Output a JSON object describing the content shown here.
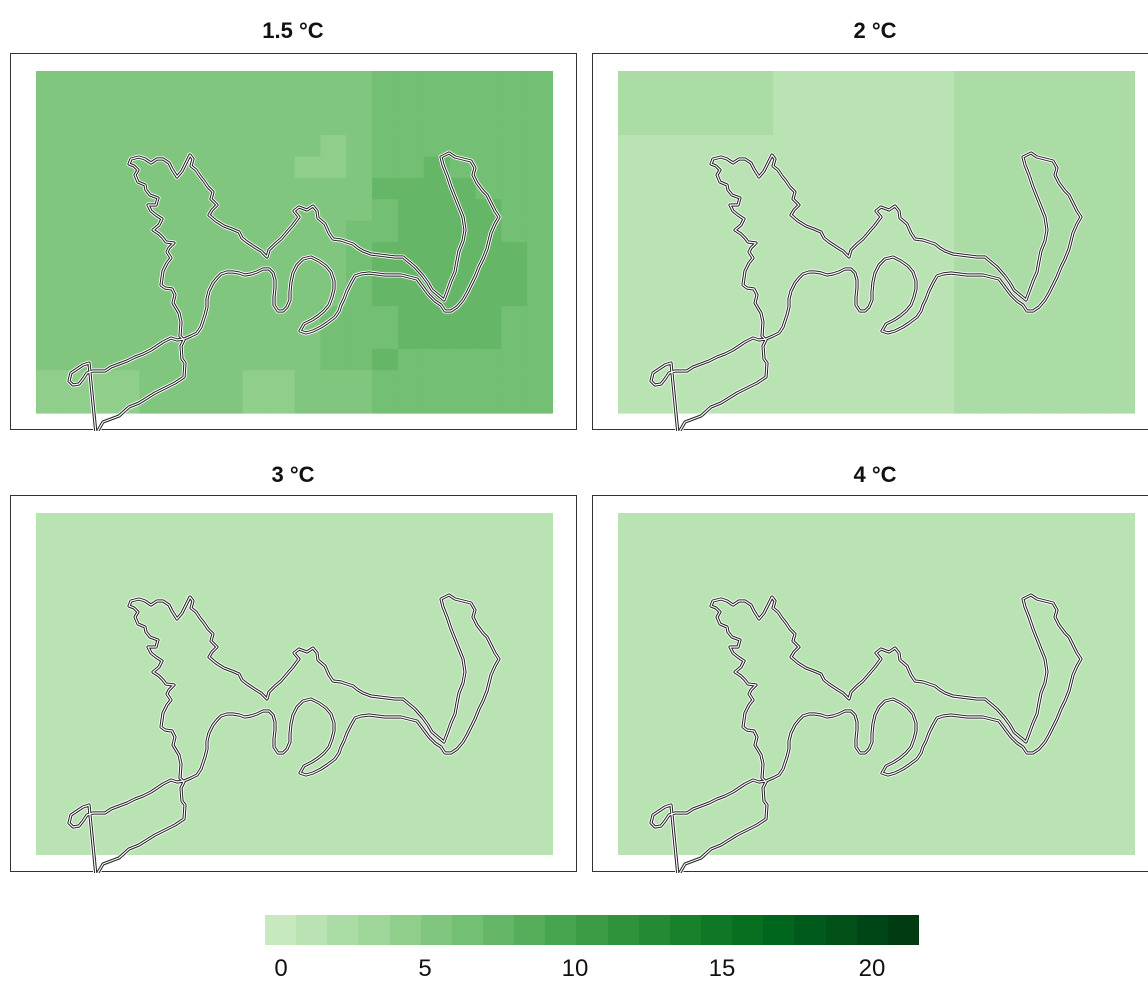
{
  "panels": [
    {
      "title": "1.5 °C",
      "grid": [
        [
          5,
          5,
          5,
          5,
          5,
          5,
          5,
          5,
          5,
          5,
          5,
          5,
          5,
          6,
          6,
          6,
          6,
          6,
          6,
          6
        ],
        [
          5,
          5,
          5,
          5,
          5,
          5,
          5,
          5,
          5,
          5,
          5,
          5,
          5,
          6,
          6,
          6,
          6,
          6,
          6,
          6
        ],
        [
          5,
          5,
          5,
          5,
          5,
          5,
          5,
          5,
          5,
          5,
          5,
          5,
          5,
          6,
          6,
          6,
          6,
          6,
          6,
          6
        ],
        [
          5,
          5,
          5,
          5,
          5,
          5,
          5,
          5,
          5,
          5,
          5,
          4,
          5,
          6,
          6,
          6,
          6,
          6,
          6,
          6
        ],
        [
          5,
          5,
          5,
          5,
          5,
          5,
          5,
          5,
          5,
          5,
          4,
          4,
          5,
          6,
          6,
          7,
          6,
          6,
          6,
          6
        ],
        [
          5,
          5,
          5,
          5,
          5,
          5,
          5,
          5,
          5,
          5,
          5,
          5,
          5,
          7,
          7,
          7,
          7,
          6,
          6,
          6
        ],
        [
          5,
          5,
          5,
          5,
          5,
          5,
          5,
          5,
          5,
          5,
          5,
          5,
          5,
          6,
          7,
          7,
          7,
          7,
          6,
          6
        ],
        [
          5,
          5,
          5,
          5,
          5,
          5,
          5,
          5,
          5,
          5,
          5,
          5,
          6,
          6,
          7,
          7,
          7,
          7,
          6,
          6
        ],
        [
          5,
          5,
          5,
          5,
          5,
          5,
          5,
          5,
          5,
          5,
          5,
          5,
          6,
          7,
          7,
          7,
          7,
          7,
          7,
          6
        ],
        [
          5,
          5,
          5,
          5,
          5,
          5,
          5,
          5,
          5,
          5,
          5,
          5,
          6,
          7,
          7,
          7,
          7,
          7,
          7,
          6
        ],
        [
          5,
          5,
          5,
          5,
          5,
          5,
          5,
          5,
          5,
          5,
          5,
          5,
          6,
          7,
          7,
          7,
          7,
          7,
          7,
          6
        ],
        [
          5,
          5,
          5,
          5,
          5,
          5,
          5,
          5,
          5,
          5,
          5,
          6,
          6,
          6,
          7,
          7,
          7,
          7,
          6,
          6
        ],
        [
          5,
          5,
          5,
          5,
          5,
          5,
          5,
          5,
          5,
          5,
          5,
          6,
          6,
          6,
          7,
          7,
          7,
          7,
          6,
          6
        ],
        [
          5,
          5,
          5,
          5,
          5,
          5,
          5,
          5,
          5,
          5,
          5,
          6,
          6,
          7,
          6,
          6,
          6,
          6,
          6,
          6
        ],
        [
          4,
          4,
          4,
          4,
          5,
          5,
          5,
          5,
          4,
          4,
          5,
          5,
          5,
          6,
          6,
          6,
          6,
          6,
          6,
          6
        ],
        [
          4,
          4,
          4,
          4,
          5,
          5,
          5,
          5,
          4,
          4,
          5,
          5,
          5,
          6,
          6,
          6,
          6,
          6,
          6,
          6
        ]
      ]
    },
    {
      "title": "2 °C",
      "grid": [
        [
          2,
          2,
          2,
          2,
          2,
          2,
          1,
          1,
          1,
          1,
          1,
          1,
          1,
          2,
          2,
          2,
          2,
          2,
          2,
          2
        ],
        [
          2,
          2,
          2,
          2,
          2,
          2,
          1,
          1,
          1,
          1,
          1,
          1,
          1,
          2,
          2,
          2,
          2,
          2,
          2,
          2
        ],
        [
          2,
          2,
          2,
          2,
          2,
          2,
          1,
          1,
          1,
          1,
          1,
          1,
          1,
          2,
          2,
          2,
          2,
          2,
          2,
          2
        ],
        [
          1,
          1,
          1,
          1,
          1,
          1,
          1,
          1,
          1,
          1,
          1,
          1,
          1,
          2,
          2,
          2,
          2,
          2,
          2,
          2
        ],
        [
          1,
          1,
          1,
          1,
          1,
          1,
          1,
          1,
          1,
          1,
          1,
          1,
          1,
          2,
          2,
          2,
          2,
          2,
          2,
          2
        ],
        [
          1,
          1,
          1,
          1,
          1,
          1,
          1,
          1,
          1,
          1,
          1,
          1,
          1,
          2,
          2,
          2,
          2,
          2,
          2,
          2
        ],
        [
          1,
          1,
          1,
          1,
          1,
          1,
          1,
          1,
          1,
          1,
          1,
          1,
          1,
          2,
          2,
          2,
          2,
          2,
          2,
          2
        ],
        [
          1,
          1,
          1,
          1,
          1,
          1,
          1,
          1,
          1,
          1,
          1,
          1,
          1,
          2,
          2,
          2,
          2,
          2,
          2,
          2
        ],
        [
          1,
          1,
          1,
          1,
          1,
          1,
          1,
          1,
          1,
          1,
          1,
          1,
          1,
          2,
          2,
          2,
          2,
          2,
          2,
          2
        ],
        [
          1,
          1,
          1,
          1,
          1,
          1,
          1,
          1,
          1,
          1,
          1,
          1,
          1,
          2,
          2,
          2,
          2,
          2,
          2,
          2
        ],
        [
          1,
          1,
          1,
          1,
          1,
          1,
          1,
          1,
          1,
          1,
          1,
          1,
          1,
          2,
          2,
          2,
          2,
          2,
          2,
          2
        ],
        [
          1,
          1,
          1,
          1,
          1,
          1,
          1,
          1,
          1,
          1,
          1,
          1,
          1,
          2,
          2,
          2,
          2,
          2,
          2,
          2
        ],
        [
          1,
          1,
          1,
          1,
          1,
          1,
          1,
          1,
          1,
          1,
          1,
          1,
          1,
          2,
          2,
          2,
          2,
          2,
          2,
          2
        ],
        [
          1,
          1,
          1,
          1,
          1,
          1,
          1,
          1,
          1,
          1,
          1,
          1,
          1,
          2,
          2,
          2,
          2,
          2,
          2,
          2
        ],
        [
          1,
          1,
          1,
          1,
          1,
          1,
          1,
          1,
          1,
          1,
          1,
          1,
          1,
          2,
          2,
          2,
          2,
          2,
          2,
          2
        ],
        [
          1,
          1,
          1,
          1,
          1,
          1,
          1,
          1,
          1,
          1,
          1,
          1,
          1,
          2,
          2,
          2,
          2,
          2,
          2,
          2
        ]
      ]
    },
    {
      "title": "3 °C",
      "uniform": 1
    },
    {
      "title": "4 °C",
      "uniform": 1
    }
  ],
  "legend": {
    "colors": [
      "#c7e9c0",
      "#bae3b3",
      "#acdca6",
      "#9ed599",
      "#90ce8c",
      "#81c67f",
      "#73bf73",
      "#65b767",
      "#56ae5b",
      "#48a54f",
      "#3b9c45",
      "#2f933b",
      "#248a33",
      "#19812b",
      "#0f7826",
      "#066f20",
      "#00651d",
      "#005a1b",
      "#005018",
      "#004516",
      "#003b12"
    ],
    "ticks": [
      "0",
      "5",
      "10",
      "15",
      "20"
    ]
  }
}
